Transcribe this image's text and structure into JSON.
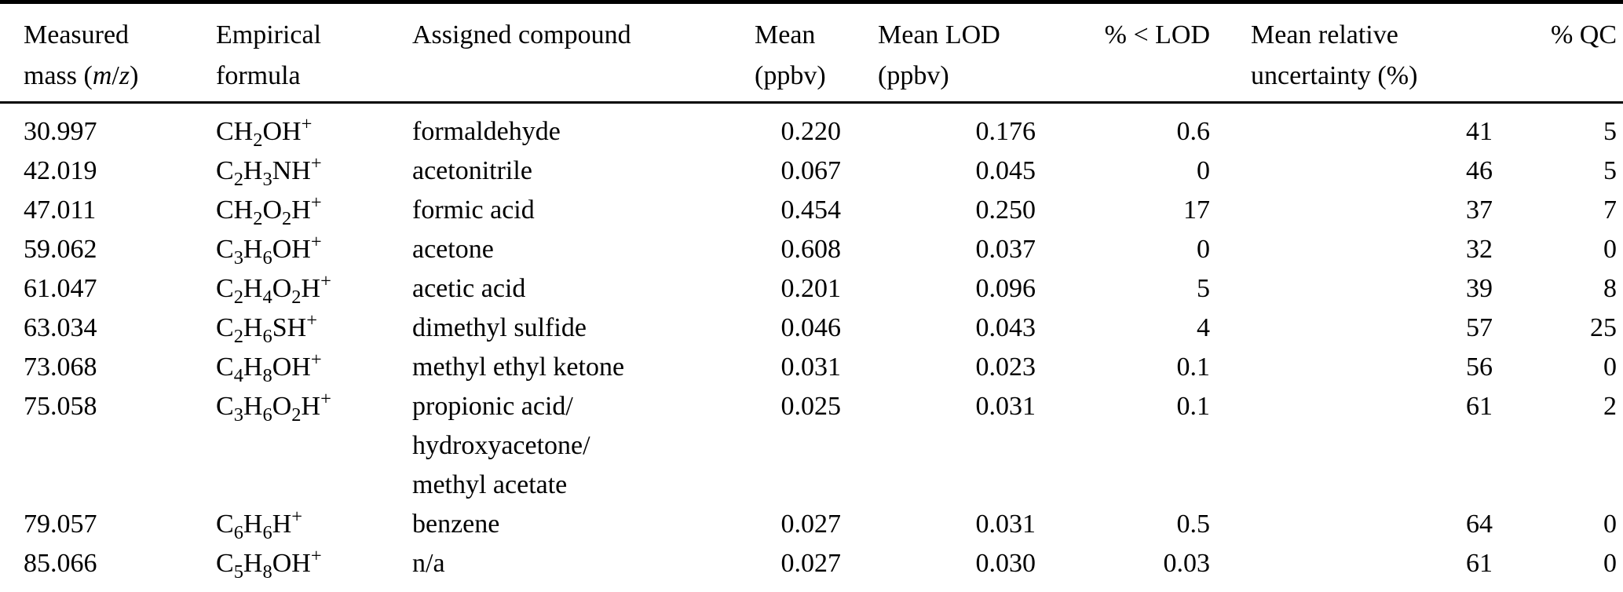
{
  "table": {
    "columns": [
      {
        "line1": "Measured",
        "line2": "mass (*m*/*z*)"
      },
      {
        "line1": "Empirical",
        "line2": "formula"
      },
      {
        "line1": "Assigned compound",
        "line2": ""
      },
      {
        "line1": "Mean",
        "line2": "(ppbv)"
      },
      {
        "line1": "Mean LOD",
        "line2": "(ppbv)"
      },
      {
        "line1": "% < LOD",
        "line2": ""
      },
      {
        "line1": "Mean relative",
        "line2": "uncertainty (%)"
      },
      {
        "line1": "% QC",
        "line2": ""
      }
    ],
    "rows": [
      {
        "mass": "30.997",
        "formula": "CH_{2}OH^{+}",
        "compound": "formaldehyde",
        "mean": "0.220",
        "lod": "0.176",
        "pct_lod": "0.6",
        "uncertainty": "41",
        "pct_qc": "5"
      },
      {
        "mass": "42.019",
        "formula": "C_{2}H_{3}NH^{+}",
        "compound": "acetonitrile",
        "mean": "0.067",
        "lod": "0.045",
        "pct_lod": "0",
        "uncertainty": "46",
        "pct_qc": "5"
      },
      {
        "mass": "47.011",
        "formula": "CH_{2}O_{2}H^{+}",
        "compound": "formic acid",
        "mean": "0.454",
        "lod": "0.250",
        "pct_lod": "17",
        "uncertainty": "37",
        "pct_qc": "7"
      },
      {
        "mass": "59.062",
        "formula": "C_{3}H_{6}OH^{+}",
        "compound": "acetone",
        "mean": "0.608",
        "lod": "0.037",
        "pct_lod": "0",
        "uncertainty": "32",
        "pct_qc": "0"
      },
      {
        "mass": "61.047",
        "formula": "C_{2}H_{4}O_{2}H^{+}",
        "compound": "acetic acid",
        "mean": "0.201",
        "lod": "0.096",
        "pct_lod": "5",
        "uncertainty": "39",
        "pct_qc": "8"
      },
      {
        "mass": "63.034",
        "formula": "C_{2}H_{6}SH^{+}",
        "compound": "dimethyl sulfide",
        "mean": "0.046",
        "lod": "0.043",
        "pct_lod": "4",
        "uncertainty": "57",
        "pct_qc": "25"
      },
      {
        "mass": "73.068",
        "formula": "C_{4}H_{8}OH^{+}",
        "compound": "methyl ethyl ketone",
        "mean": "0.031",
        "lod": "0.023",
        "pct_lod": "0.1",
        "uncertainty": "56",
        "pct_qc": "0"
      },
      {
        "mass": "75.058",
        "formula": "C_{3}H_{6}O_{2}H^{+}",
        "compound": "propionic acid/\nhydroxyacetone/\nmethyl acetate",
        "mean": "0.025",
        "lod": "0.031",
        "pct_lod": "0.1",
        "uncertainty": "61",
        "pct_qc": "2"
      },
      {
        "mass": "79.057",
        "formula": "C_{6}H_{6}H^{+}",
        "compound": "benzene",
        "mean": "0.027",
        "lod": "0.031",
        "pct_lod": "0.5",
        "uncertainty": "64",
        "pct_qc": "0"
      },
      {
        "mass": "85.066",
        "formula": "C_{5}H_{8}OH^{+}",
        "compound": "n/a",
        "mean": "0.027",
        "lod": "0.030",
        "pct_lod": "0.03",
        "uncertainty": "61",
        "pct_qc": "0"
      }
    ]
  }
}
